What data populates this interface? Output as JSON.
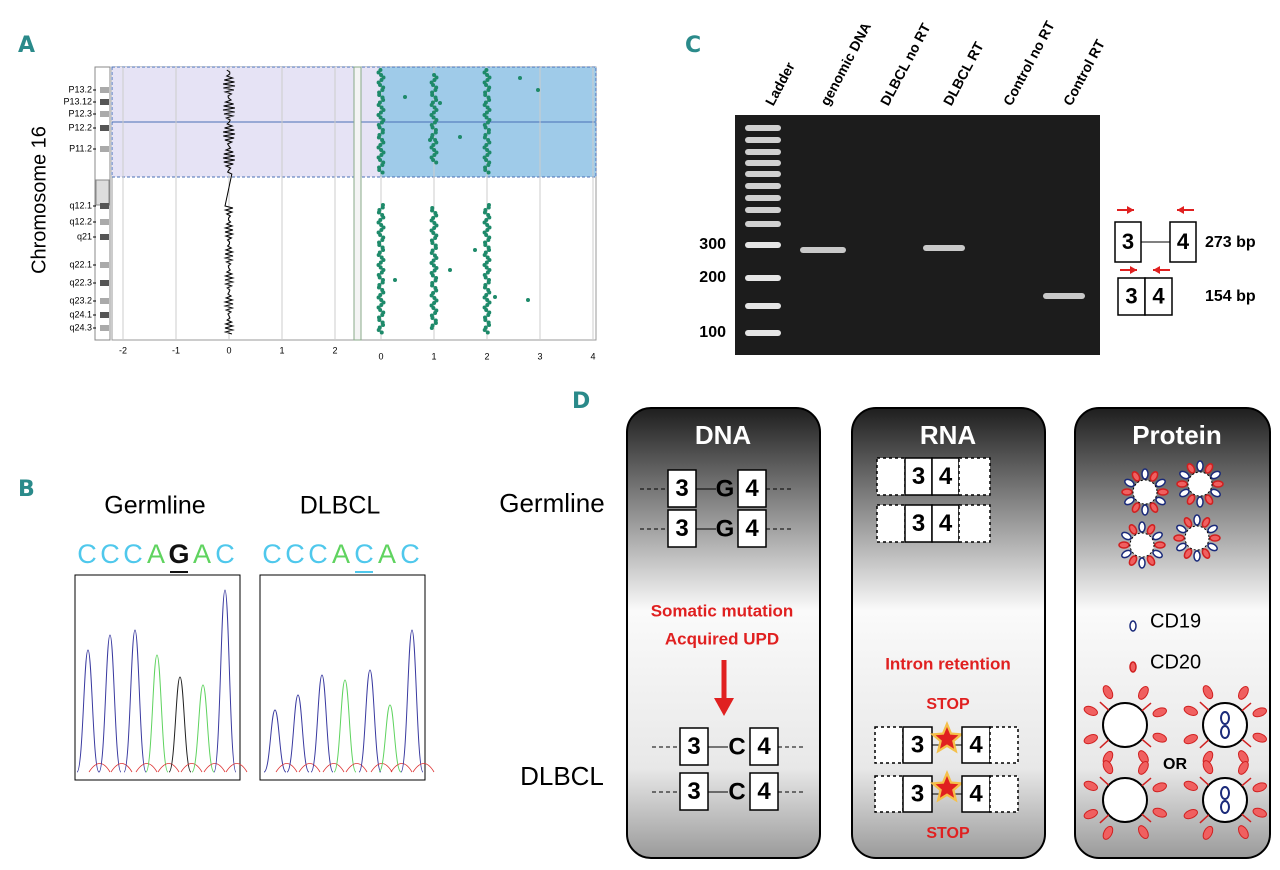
{
  "panels": {
    "a": {
      "label": "A",
      "y_label": "Chromosome 16",
      "bands": [
        "P13.2",
        "P13.12",
        "P12.3",
        "P12.2",
        "P11.2",
        "q12.1",
        "q12.2",
        "q21",
        "q22.1",
        "q22.3",
        "q23.2",
        "q24.1",
        "q24.3"
      ],
      "x_ticks_left": [
        -2,
        -1,
        0,
        1,
        2
      ],
      "x_ticks_right": [
        0,
        1,
        2,
        3,
        4
      ]
    },
    "b": {
      "label": "B",
      "samples": [
        {
          "name": "Germline",
          "sequence": [
            "C",
            "C",
            "C",
            "A",
            "G",
            "A",
            "C"
          ]
        },
        {
          "name": "DLBCL",
          "sequence": [
            "C",
            "C",
            "C",
            "A",
            "C",
            "A",
            "C"
          ]
        }
      ]
    },
    "c": {
      "label": "C",
      "lanes": [
        "Ladder",
        "genomic DNA",
        "DLBCL no RT",
        "DLBCL RT",
        "Control no RT",
        "Control RT"
      ],
      "ladder_sizes": [
        300,
        200,
        100
      ],
      "products": [
        {
          "exons": [
            "3",
            "4"
          ],
          "size": "273 bp"
        },
        {
          "exons": [
            "3",
            "4"
          ],
          "size": "154 bp"
        }
      ]
    },
    "d": {
      "label": "D",
      "rows": [
        "Germline",
        "DLBCL"
      ],
      "dna": {
        "title": "DNA",
        "germline_allele": [
          "3",
          "G",
          "4"
        ],
        "mutation_text": [
          "Somatic mutation",
          "Acquired UPD"
        ],
        "dlbcl_allele": [
          "3",
          "C",
          "4"
        ]
      },
      "rna": {
        "title": "RNA",
        "germline_exons": [
          "3",
          "4"
        ],
        "event": "Intron retention",
        "stop": "STOP",
        "dlbcl_exons": [
          "3",
          "4"
        ]
      },
      "protein": {
        "title": "Protein",
        "legend": [
          "CD19",
          "CD20"
        ],
        "or": "OR"
      }
    }
  }
}
